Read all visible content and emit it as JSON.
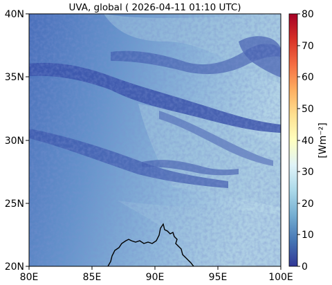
{
  "title": "UVA, global ( 2026-04-11 01:10 UTC)",
  "map": {
    "lon_range": [
      80,
      100
    ],
    "lat_range": [
      20,
      40
    ],
    "x_ticks": [
      "80E",
      "85E",
      "90E",
      "95E",
      "100E"
    ],
    "y_ticks": [
      "20N",
      "25N",
      "30N",
      "35N",
      "40N"
    ]
  },
  "colorbar": {
    "label": "[Wm⁻²]",
    "ticks": [
      "0",
      "10",
      "20",
      "30",
      "40",
      "50",
      "60",
      "70",
      "80"
    ],
    "range": [
      0,
      80
    ],
    "colormap": "RdYlBu_r"
  },
  "colors": {
    "field_west": "#4a72bd",
    "field_east": "#a9cce0",
    "cloud": "#3549a3",
    "coastline": "#000000"
  }
}
